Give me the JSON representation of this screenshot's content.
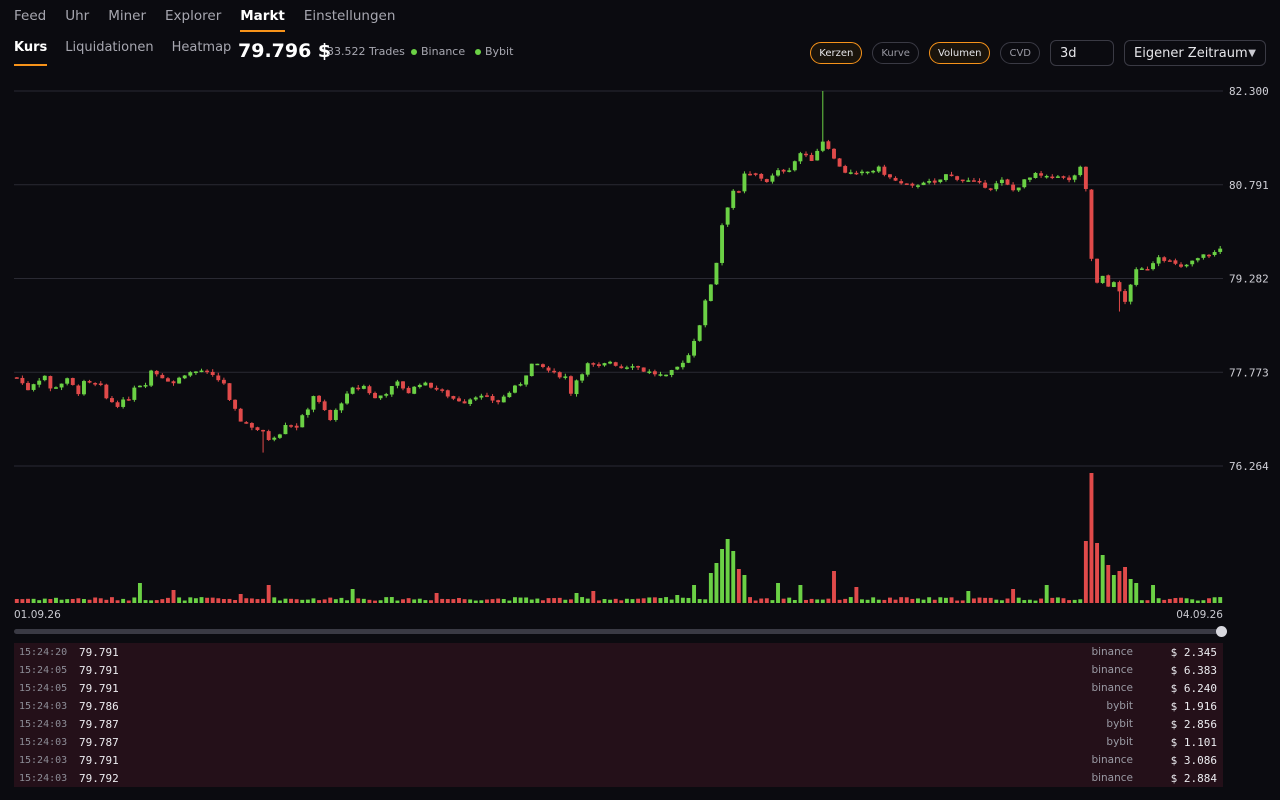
{
  "top_nav": [
    {
      "label": "Feed",
      "active": false
    },
    {
      "label": "Uhr",
      "active": false
    },
    {
      "label": "Miner",
      "active": false
    },
    {
      "label": "Explorer",
      "active": false
    },
    {
      "label": "Markt",
      "active": true
    },
    {
      "label": "Einstellungen",
      "active": false
    }
  ],
  "sub_nav": [
    {
      "label": "Kurs",
      "active": true
    },
    {
      "label": "Liquidationen",
      "active": false
    },
    {
      "label": "Heatmap",
      "active": false
    }
  ],
  "header": {
    "price": "79.796 $",
    "trades": "33.522 Trades",
    "exchanges": [
      "Binance",
      "Bybit"
    ],
    "exchange_dot_color": "#6bd145"
  },
  "controls": {
    "toggles": [
      {
        "label": "Kerzen",
        "on": true
      },
      {
        "label": "Kurve",
        "on": false
      },
      {
        "label": "Volumen",
        "on": true
      },
      {
        "label": "CVD",
        "on": false
      }
    ],
    "range_value": "3d",
    "period_select": "Eigener Zeitraum",
    "period_icon": "chevron-down-icon"
  },
  "colors": {
    "up": "#6bd145",
    "down": "#e04a4a",
    "accent": "#f7931a"
  },
  "chart_data": {
    "type": "candlestick",
    "y_ticks": [
      "82.300",
      "80.791",
      "79.282",
      "77.773",
      "76.264"
    ],
    "ylim": [
      76264,
      82300
    ],
    "x_start_label": "01.09.26",
    "x_end_label": "04.09.26",
    "grid": true,
    "volume_panel": true,
    "close_path": [
      [
        0,
        77690
      ],
      [
        2,
        77500
      ],
      [
        3,
        77600
      ],
      [
        5,
        77720
      ],
      [
        6,
        77500
      ],
      [
        9,
        77650
      ],
      [
        11,
        77450
      ],
      [
        12,
        77600
      ],
      [
        15,
        77550
      ],
      [
        16,
        77350
      ],
      [
        18,
        77250
      ],
      [
        20,
        77350
      ],
      [
        21,
        77550
      ],
      [
        23,
        77600
      ],
      [
        24,
        77800
      ],
      [
        26,
        77700
      ],
      [
        28,
        77600
      ],
      [
        30,
        77750
      ],
      [
        33,
        77800
      ],
      [
        35,
        77700
      ],
      [
        37,
        77600
      ],
      [
        38,
        77300
      ],
      [
        40,
        77000
      ],
      [
        42,
        76900
      ],
      [
        44,
        76800
      ],
      [
        45,
        76700
      ],
      [
        47,
        76800
      ],
      [
        48,
        76950
      ],
      [
        50,
        76900
      ],
      [
        52,
        77200
      ],
      [
        53,
        77400
      ],
      [
        55,
        77150
      ],
      [
        56,
        77000
      ],
      [
        58,
        77300
      ],
      [
        60,
        77500
      ],
      [
        62,
        77550
      ],
      [
        64,
        77350
      ],
      [
        66,
        77450
      ],
      [
        68,
        77600
      ],
      [
        70,
        77450
      ],
      [
        72,
        77600
      ],
      [
        74,
        77550
      ],
      [
        76,
        77450
      ],
      [
        78,
        77350
      ],
      [
        80,
        77300
      ],
      [
        82,
        77400
      ],
      [
        84,
        77350
      ],
      [
        86,
        77300
      ],
      [
        88,
        77450
      ],
      [
        90,
        77600
      ],
      [
        92,
        77900
      ],
      [
        94,
        77850
      ],
      [
        96,
        77750
      ],
      [
        98,
        77700
      ],
      [
        99,
        77450
      ],
      [
        100,
        77650
      ],
      [
        102,
        77900
      ],
      [
        104,
        77850
      ],
      [
        106,
        77950
      ],
      [
        108,
        77850
      ],
      [
        110,
        77900
      ],
      [
        112,
        77800
      ],
      [
        114,
        77750
      ],
      [
        116,
        77700
      ],
      [
        118,
        77850
      ],
      [
        120,
        78050
      ],
      [
        121,
        78300
      ],
      [
        122,
        78550
      ],
      [
        123,
        78900
      ],
      [
        124,
        79200
      ],
      [
        125,
        79550
      ],
      [
        126,
        80150
      ],
      [
        127,
        80450
      ],
      [
        128,
        80700
      ],
      [
        129,
        80650
      ],
      [
        130,
        80950
      ],
      [
        132,
        80950
      ],
      [
        134,
        80850
      ],
      [
        136,
        81000
      ],
      [
        138,
        81050
      ],
      [
        140,
        81300
      ],
      [
        142,
        81200
      ],
      [
        144,
        81500
      ],
      [
        145,
        81400
      ],
      [
        146,
        81200
      ],
      [
        148,
        81000
      ],
      [
        150,
        80950
      ],
      [
        152,
        81000
      ],
      [
        154,
        81050
      ],
      [
        156,
        80900
      ],
      [
        158,
        80800
      ],
      [
        160,
        80750
      ],
      [
        162,
        80850
      ],
      [
        164,
        80800
      ],
      [
        166,
        80950
      ],
      [
        168,
        80900
      ],
      [
        170,
        80850
      ],
      [
        172,
        80800
      ],
      [
        174,
        80750
      ],
      [
        176,
        80850
      ],
      [
        178,
        80700
      ],
      [
        180,
        80850
      ],
      [
        182,
        80950
      ],
      [
        184,
        80900
      ],
      [
        186,
        80950
      ],
      [
        188,
        80850
      ],
      [
        190,
        81050
      ],
      [
        191,
        80700
      ],
      [
        192,
        79600
      ],
      [
        193,
        79200
      ],
      [
        194,
        79300
      ],
      [
        195,
        79150
      ],
      [
        196,
        79250
      ],
      [
        197,
        79050
      ],
      [
        198,
        78900
      ],
      [
        199,
        79200
      ],
      [
        200,
        79400
      ],
      [
        202,
        79450
      ],
      [
        204,
        79650
      ],
      [
        206,
        79550
      ],
      [
        208,
        79450
      ],
      [
        210,
        79550
      ],
      [
        212,
        79650
      ],
      [
        214,
        79700
      ],
      [
        215,
        79760
      ]
    ],
    "volume_spikes": [
      [
        22,
        1.0
      ],
      [
        28,
        0.65
      ],
      [
        40,
        0.45
      ],
      [
        45,
        0.9
      ],
      [
        60,
        0.7
      ],
      [
        75,
        0.5
      ],
      [
        100,
        0.5
      ],
      [
        103,
        0.6
      ],
      [
        118,
        0.4
      ],
      [
        121,
        0.9
      ],
      [
        124,
        1.5
      ],
      [
        125,
        2.0
      ],
      [
        126,
        2.7
      ],
      [
        127,
        3.2
      ],
      [
        128,
        2.6
      ],
      [
        129,
        1.7
      ],
      [
        130,
        1.4
      ],
      [
        136,
        1.0
      ],
      [
        140,
        0.9
      ],
      [
        146,
        1.6
      ],
      [
        150,
        0.8
      ],
      [
        170,
        0.6
      ],
      [
        178,
        0.7
      ],
      [
        184,
        0.9
      ],
      [
        191,
        3.1
      ],
      [
        192,
        6.5
      ],
      [
        193,
        3.0
      ],
      [
        194,
        2.4
      ],
      [
        195,
        1.9
      ],
      [
        196,
        1.4
      ],
      [
        197,
        1.6
      ],
      [
        198,
        1.8
      ],
      [
        199,
        1.2
      ],
      [
        200,
        1.0
      ],
      [
        203,
        0.9
      ]
    ]
  },
  "trade_rows": [
    {
      "time": "15:24:20",
      "price": "79.791",
      "exchange": "binance",
      "amount": "$ 2.345"
    },
    {
      "time": "15:24:05",
      "price": "79.791",
      "exchange": "binance",
      "amount": "$ 6.383"
    },
    {
      "time": "15:24:05",
      "price": "79.791",
      "exchange": "binance",
      "amount": "$ 6.240"
    },
    {
      "time": "15:24:03",
      "price": "79.786",
      "exchange": "bybit",
      "amount": "$ 1.916"
    },
    {
      "time": "15:24:03",
      "price": "79.787",
      "exchange": "bybit",
      "amount": "$ 2.856"
    },
    {
      "time": "15:24:03",
      "price": "79.787",
      "exchange": "bybit",
      "amount": "$ 1.101"
    },
    {
      "time": "15:24:03",
      "price": "79.791",
      "exchange": "binance",
      "amount": "$ 3.086"
    },
    {
      "time": "15:24:03",
      "price": "79.792",
      "exchange": "binance",
      "amount": "$ 2.884"
    }
  ]
}
